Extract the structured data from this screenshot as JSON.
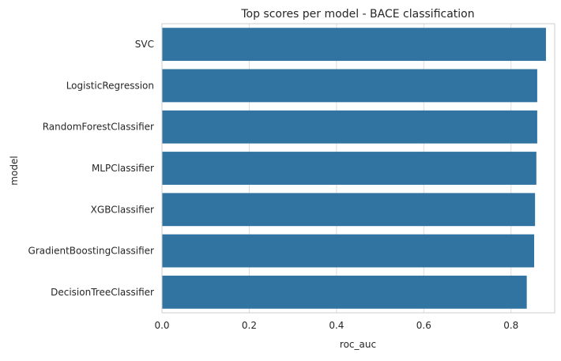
{
  "chart_data": {
    "type": "bar",
    "orientation": "horizontal",
    "title": "Top scores per model - BACE classification",
    "xlabel": "roc_auc",
    "ylabel": "model",
    "categories": [
      "SVC",
      "LogisticRegression",
      "RandomForestClassifier",
      "MLPClassifier",
      "XGBClassifier",
      "GradientBoostingClassifier",
      "DecisionTreeClassifier"
    ],
    "values": [
      0.88,
      0.86,
      0.86,
      0.858,
      0.855,
      0.853,
      0.836
    ],
    "xlim": [
      0,
      0.9
    ],
    "xticks": [
      0.0,
      0.2,
      0.4,
      0.6,
      0.8
    ],
    "xtick_labels": [
      "0.0",
      "0.2",
      "0.4",
      "0.6",
      "0.8"
    ],
    "grid": true,
    "colors": {
      "bar": "#3274a1",
      "grid": "#dddddd",
      "axes_edge": "#cccccc",
      "text": "#262626",
      "background": "#ffffff"
    }
  }
}
